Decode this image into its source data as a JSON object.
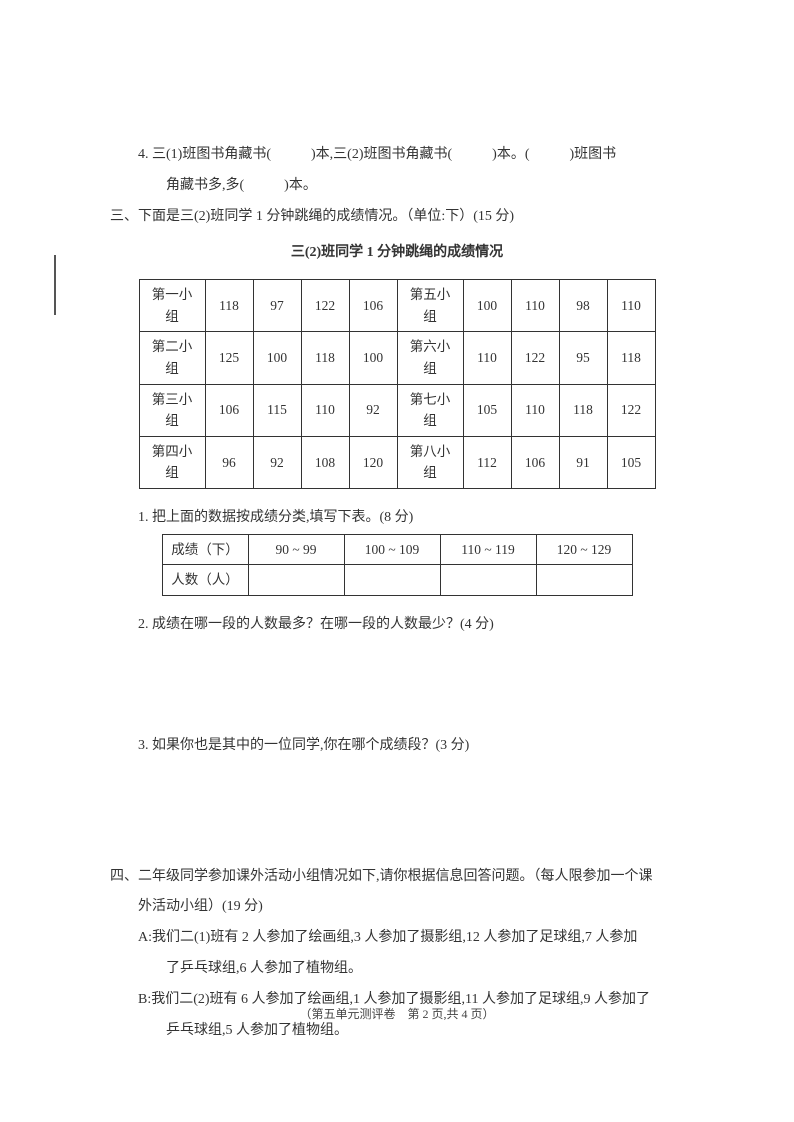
{
  "colors": {
    "text": "#333333",
    "border": "#333333",
    "bg": "#ffffff"
  },
  "q4": {
    "prefix": "4. 三(1)班图书角藏书(",
    "mid1": ")本,三(2)班图书角藏书(",
    "mid2": ")本。(",
    "mid3": ")班图书",
    "line2": "角藏书多,多(",
    "end": ")本。"
  },
  "section3": {
    "heading": "三、下面是三(2)班同学 1 分钟跳绳的成绩情况。（单位:下）(15 分)",
    "tableTitle": "三(2)班同学 1 分钟跳绳的成绩情况",
    "mainTable": {
      "type": "table",
      "border_color": "#333333",
      "cell_fontsize": 13.5,
      "rows": [
        [
          "第一小组",
          "118",
          "97",
          "122",
          "106",
          "第五小组",
          "100",
          "110",
          "98",
          "110"
        ],
        [
          "第二小组",
          "125",
          "100",
          "118",
          "100",
          "第六小组",
          "110",
          "122",
          "95",
          "118"
        ],
        [
          "第三小组",
          "106",
          "115",
          "110",
          "92",
          "第七小组",
          "105",
          "110",
          "118",
          "122"
        ],
        [
          "第四小组",
          "96",
          "92",
          "108",
          "120",
          "第八小组",
          "112",
          "106",
          "91",
          "105"
        ]
      ]
    },
    "q1": "1. 把上面的数据按成绩分类,填写下表。(8 分)",
    "summaryTable": {
      "type": "table",
      "border_color": "#333333",
      "header": [
        "成绩（下）",
        "90 ~ 99",
        "100 ~ 109",
        "110 ~ 119",
        "120 ~ 129"
      ],
      "row2_label": "人数（人）",
      "row2_values": [
        "",
        "",
        "",
        ""
      ]
    },
    "q2": "2. 成绩在哪一段的人数最多？在哪一段的人数最少？(4 分)",
    "q3": "3. 如果你也是其中的一位同学,你在哪个成绩段？(3 分)"
  },
  "section4": {
    "heading_a": "四、二年级同学参加课外活动小组情况如下,请你根据信息回答问题。（每人限参加一个课",
    "heading_b": "外活动小组）(19 分)",
    "A_a": "A:我们二(1)班有 2 人参加了绘画组,3 人参加了摄影组,12 人参加了足球组,7 人参加",
    "A_b": "了乒乓球组,6 人参加了植物组。",
    "B_a": "B:我们二(2)班有 6 人参加了绘画组,1 人参加了摄影组,11 人参加了足球组,9 人参加了",
    "B_b": "乒乓球组,5 人参加了植物组。"
  },
  "footer": "（第五单元测评卷　第 2 页,共 4 页）"
}
